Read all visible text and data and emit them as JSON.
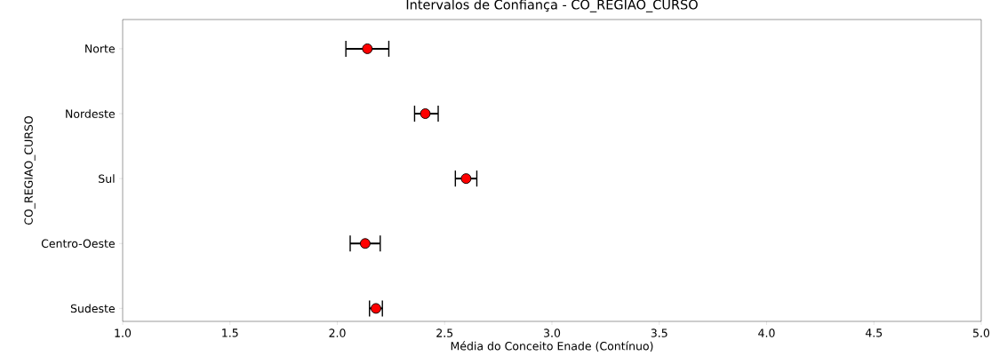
{
  "chart_data": {
    "type": "scatter",
    "orientation": "horizontal",
    "title": "Intervalos de Confiança - CO_REGIAO_CURSO",
    "xlabel": "Média do Conceito Enade (Contínuo)",
    "ylabel": "CO_REGIAO_CURSO",
    "categories": [
      "Norte",
      "Nordeste",
      "Sul",
      "Centro-Oeste",
      "Sudeste"
    ],
    "values": [
      2.14,
      2.41,
      2.6,
      2.13,
      2.18
    ],
    "errors": [
      [
        2.04,
        2.24
      ],
      [
        2.36,
        2.47
      ],
      [
        2.55,
        2.65
      ],
      [
        2.06,
        2.2
      ],
      [
        2.15,
        2.21
      ]
    ],
    "color": "#ff0000",
    "marker": "circle",
    "grid": false,
    "xlim": [
      1.0,
      5.0
    ],
    "xticks": [
      {
        "value": 1.0,
        "label": "1.0"
      },
      {
        "value": 1.5,
        "label": "1.5"
      },
      {
        "value": 2.0,
        "label": "2.0"
      },
      {
        "value": 2.5,
        "label": "2.5"
      },
      {
        "value": 3.0,
        "label": "3.0"
      },
      {
        "value": 3.5,
        "label": "3.5"
      },
      {
        "value": 4.0,
        "label": "4.0"
      },
      {
        "value": 4.5,
        "label": "4.5"
      },
      {
        "value": 5.0,
        "label": "5.0"
      }
    ]
  }
}
